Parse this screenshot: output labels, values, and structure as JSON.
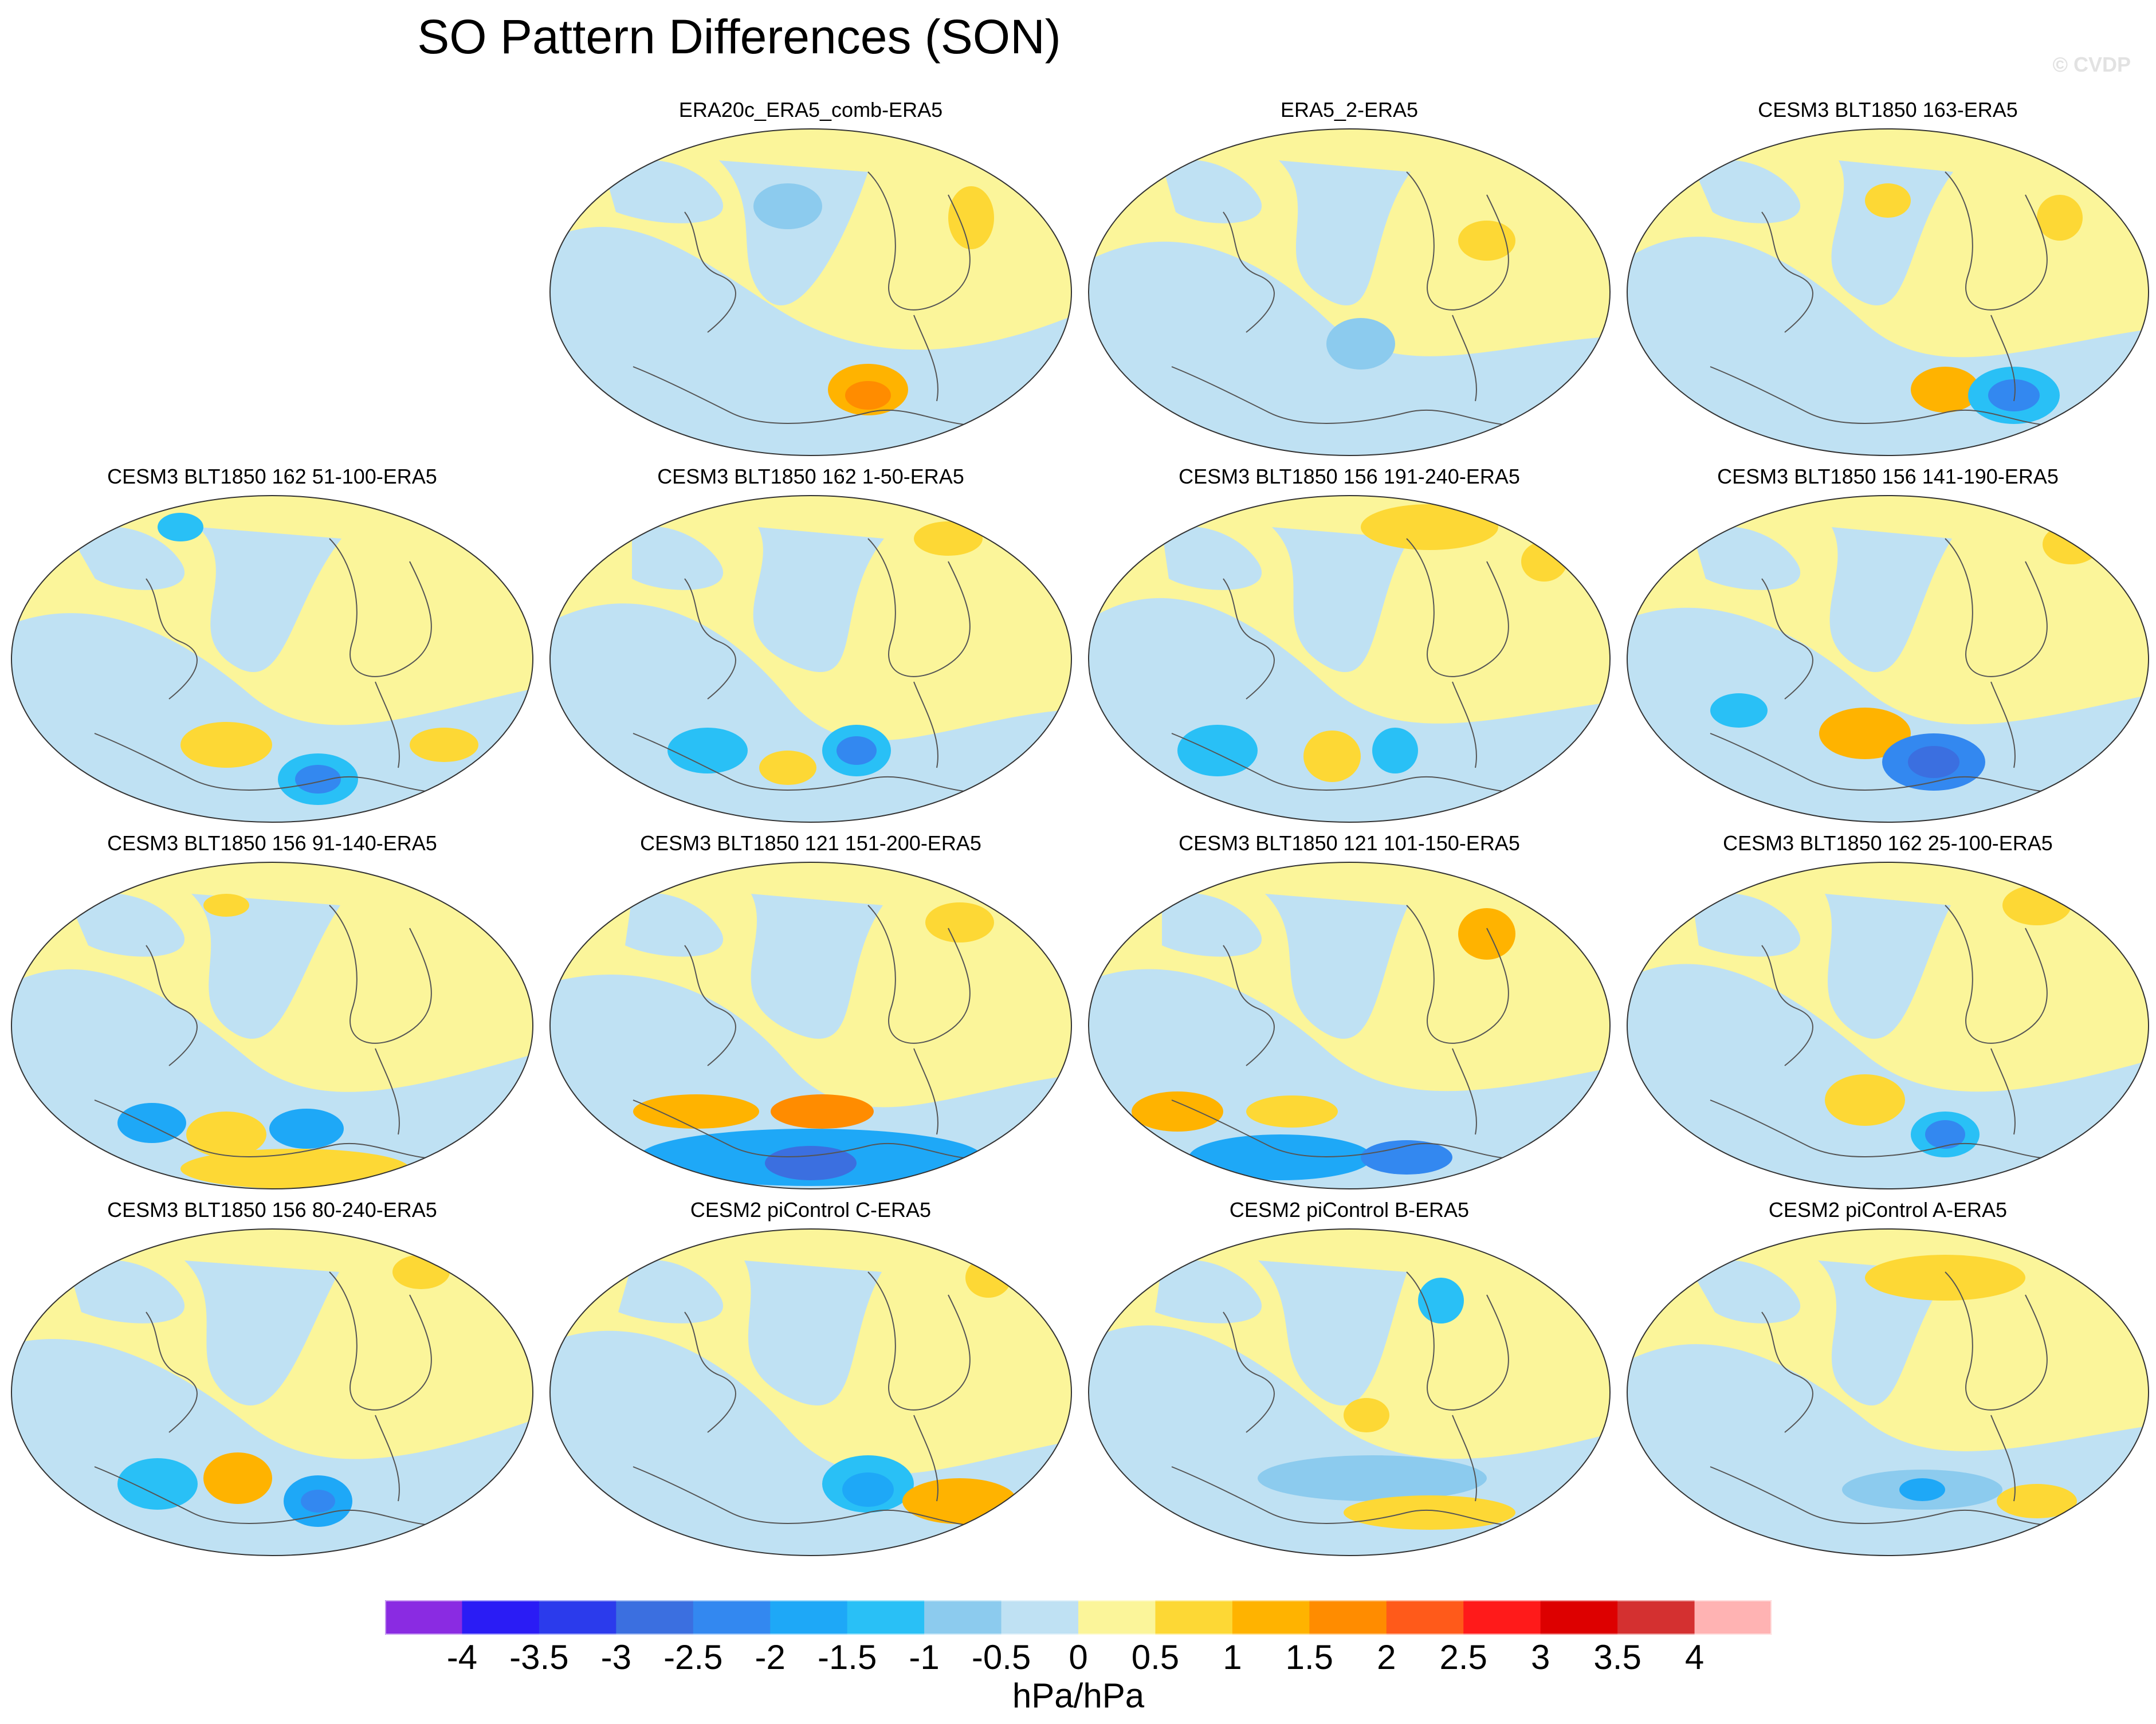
{
  "title": "SO Pattern Differences (SON)",
  "watermark": "© CVDP",
  "colors": {
    "ocean_blue": "#bfe1f3",
    "land_yellow": "#fbf59a",
    "outline": "#555555"
  },
  "panels": [
    {
      "title": "ERA20c_ERA5_comb-ERA5"
    },
    {
      "title": "ERA5_2-ERA5"
    },
    {
      "title": "CESM3 BLT1850 163-ERA5"
    },
    {
      "title": "CESM3 BLT1850 162 51-100-ERA5"
    },
    {
      "title": "CESM3 BLT1850 162 1-50-ERA5"
    },
    {
      "title": "CESM3 BLT1850 156 191-240-ERA5"
    },
    {
      "title": "CESM3 BLT1850 156 141-190-ERA5"
    },
    {
      "title": "CESM3 BLT1850 156 91-140-ERA5"
    },
    {
      "title": "CESM3 BLT1850 121 151-200-ERA5"
    },
    {
      "title": "CESM3 BLT1850 121 101-150-ERA5"
    },
    {
      "title": "CESM3 BLT1850 162 25-100-ERA5"
    },
    {
      "title": "CESM3 BLT1850 156 80-240-ERA5"
    },
    {
      "title": "CESM2 piControl C-ERA5"
    },
    {
      "title": "CESM2 piControl B-ERA5"
    },
    {
      "title": "CESM2 piControl A-ERA5"
    }
  ],
  "colorbar": {
    "colors": [
      "#8a2be2",
      "#2a1cf5",
      "#2b3bec",
      "#3b6fe0",
      "#3388f0",
      "#1ea8f7",
      "#29c0f6",
      "#8ccbee",
      "#bfe1f3",
      "#fbf59a",
      "#fdd835",
      "#ffb300",
      "#ff8c00",
      "#ff5a1a",
      "#ff1a1a",
      "#dd0000",
      "#d43030",
      "#ffb3b3"
    ],
    "ticks": [
      "-4",
      "-3.5",
      "-3",
      "-2.5",
      "-2",
      "-1.5",
      "-1",
      "-0.5",
      "0",
      "0.5",
      "1",
      "1.5",
      "2",
      "2.5",
      "3",
      "3.5",
      "4"
    ],
    "units": "hPa/hPa"
  }
}
